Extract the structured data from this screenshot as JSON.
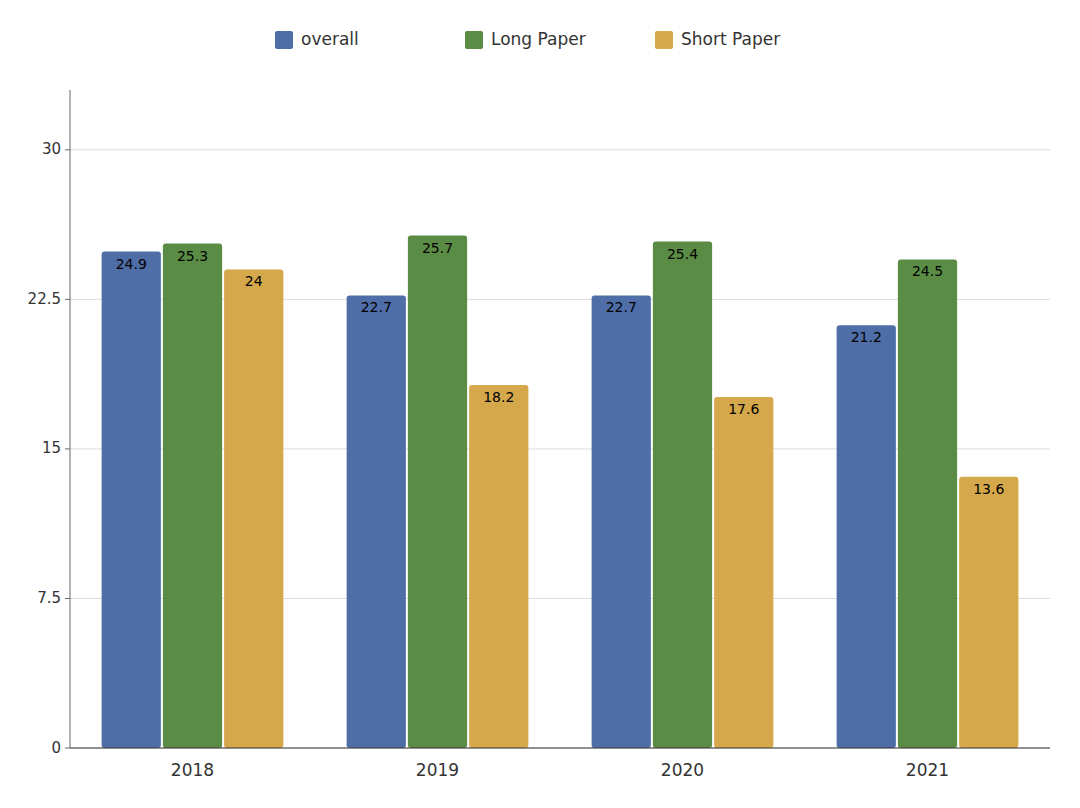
{
  "chart_data": {
    "type": "bar",
    "categories": [
      "2018",
      "2019",
      "2020",
      "2021"
    ],
    "series": [
      {
        "name": "overall",
        "color": "#4F6EA8",
        "values": [
          24.9,
          22.7,
          22.7,
          21.2
        ]
      },
      {
        "name": "Long Paper",
        "color": "#5B8C45",
        "values": [
          25.3,
          25.7,
          25.4,
          24.5
        ]
      },
      {
        "name": "Short Paper",
        "color": "#D4A84B",
        "values": [
          24.0,
          18.2,
          17.6,
          13.6
        ]
      }
    ],
    "ylim": [
      0,
      33
    ],
    "yticks": [
      0,
      7.5,
      15,
      22.5,
      30
    ],
    "grid": true,
    "data_labels": true,
    "legend": "top"
  }
}
